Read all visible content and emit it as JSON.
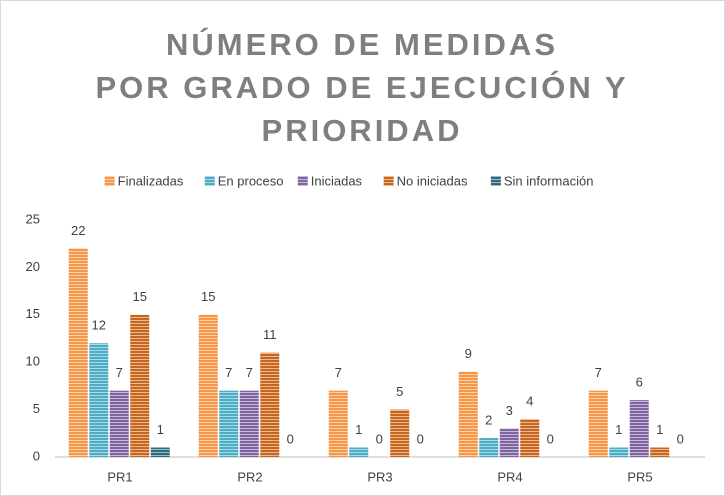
{
  "chart_data": {
    "type": "bar",
    "title": [
      "NÚMERO DE MEDIDAS",
      "POR GRADO DE EJECUCIÓN Y",
      "PRIORIDAD"
    ],
    "categories": [
      "PR1",
      "PR2",
      "PR3",
      "PR4",
      "PR5"
    ],
    "series": [
      {
        "name": "Finalizadas",
        "color": "#f79646",
        "values": [
          22,
          15,
          7,
          9,
          7
        ]
      },
      {
        "name": "En proceso",
        "color": "#4bacc6",
        "values": [
          12,
          7,
          1,
          2,
          1
        ]
      },
      {
        "name": "Iniciadas",
        "color": "#8064a2",
        "values": [
          7,
          7,
          0,
          3,
          6
        ]
      },
      {
        "name": "No iniciadas",
        "color": "#c9651a",
        "values": [
          15,
          11,
          5,
          4,
          1
        ]
      },
      {
        "name": "Sin información",
        "color": "#2b6a7e",
        "values": [
          1,
          0,
          0,
          0,
          0
        ]
      }
    ],
    "ylim": [
      0,
      25
    ],
    "yticks": [
      0,
      5,
      10,
      15,
      20,
      25
    ],
    "grid": false,
    "legend": "top",
    "data_labels": true
  }
}
